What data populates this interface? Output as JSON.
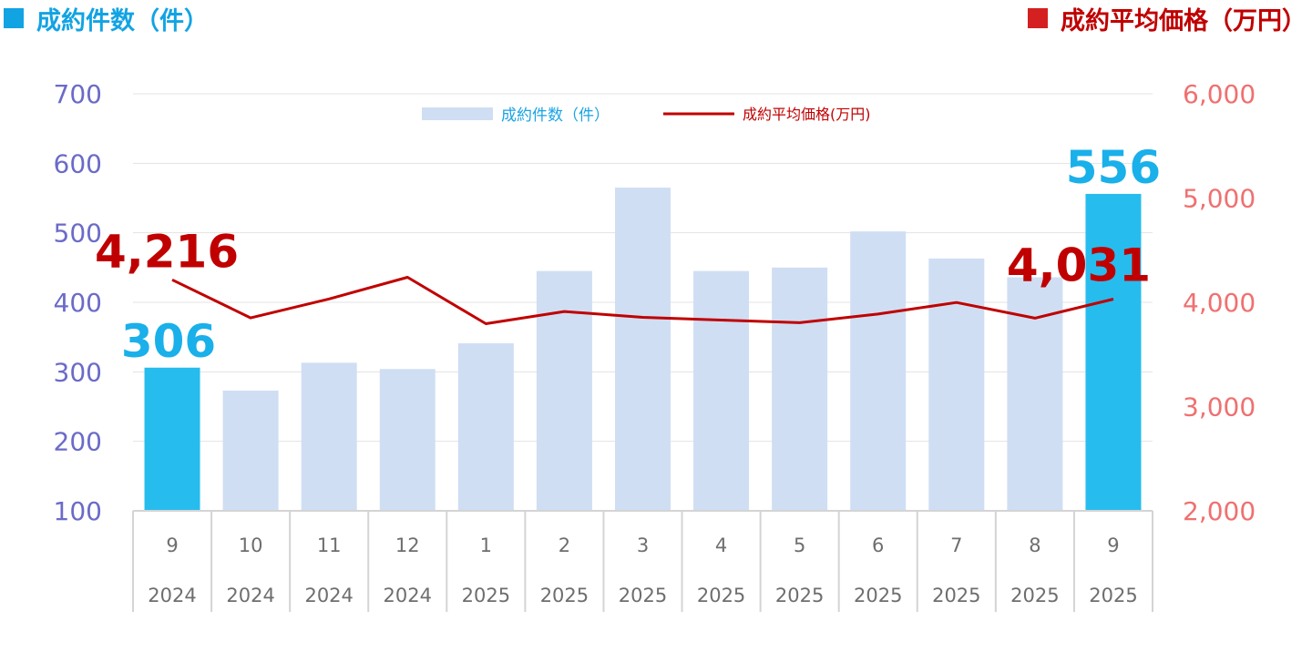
{
  "header": {
    "left_title": "成約件数（件）",
    "right_title": "成約平均価格（万円）"
  },
  "colors": {
    "count_accent": "#12a3e3",
    "price_accent": "#c00000",
    "bar_default": "#cfdef3",
    "bar_highlight": "#27bcee"
  },
  "chart_data": {
    "type": "bar",
    "categories": [
      {
        "month": "9",
        "year": "2024"
      },
      {
        "month": "10",
        "year": "2024"
      },
      {
        "month": "11",
        "year": "2024"
      },
      {
        "month": "12",
        "year": "2024"
      },
      {
        "month": "1",
        "year": "2025"
      },
      {
        "month": "2",
        "year": "2025"
      },
      {
        "month": "3",
        "year": "2025"
      },
      {
        "month": "4",
        "year": "2025"
      },
      {
        "month": "5",
        "year": "2025"
      },
      {
        "month": "6",
        "year": "2025"
      },
      {
        "month": "7",
        "year": "2025"
      },
      {
        "month": "8",
        "year": "2025"
      },
      {
        "month": "9",
        "year": "2025"
      }
    ],
    "series": [
      {
        "name": "成約件数（件）",
        "type": "bar",
        "axis": "left",
        "values": [
          306,
          273,
          313,
          304,
          341,
          445,
          565,
          445,
          450,
          502,
          463,
          436,
          556
        ],
        "highlight_indices": [
          0,
          12
        ]
      },
      {
        "name": "成約平均価格(万円)",
        "type": "line",
        "axis": "right",
        "values": [
          4216,
          3851,
          4032,
          4240,
          3795,
          3912,
          3856,
          3830,
          3804,
          3887,
          3998,
          3848,
          4031
        ]
      }
    ],
    "left_axis": {
      "ylim": [
        100,
        700
      ],
      "ticks": [
        "100",
        "200",
        "300",
        "400",
        "500",
        "600",
        "700"
      ]
    },
    "right_axis": {
      "ylim": [
        2000,
        6000
      ],
      "ticks": [
        "2,000",
        "3,000",
        "4,000",
        "5,000",
        "6,000"
      ]
    },
    "annotations": {
      "first_count": "306",
      "last_count": "556",
      "first_price": "4,216",
      "last_price": "4,031"
    },
    "grid": true,
    "legend": "top-center"
  }
}
